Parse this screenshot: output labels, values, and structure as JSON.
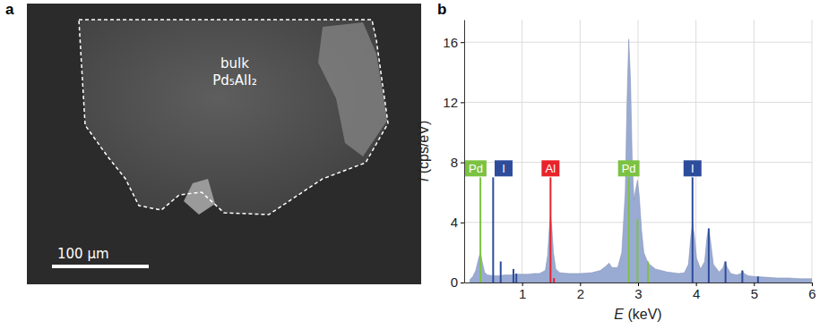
{
  "image_panel": {
    "panel": "a",
    "label_lines": [
      "bulk",
      "Pd₅AlI₂"
    ],
    "scale_bar": "100 μm"
  },
  "chart_data": {
    "panel": "b",
    "type": "area",
    "x_label": "E (keV)",
    "y_label": "I (cps/eV)",
    "xlim": [
      0,
      6
    ],
    "xticks": [
      1,
      2,
      3,
      4,
      5,
      6
    ],
    "ylim": [
      0,
      17.5
    ],
    "yticks": [
      0,
      4,
      8,
      12,
      16
    ],
    "grid": true,
    "series": [
      {
        "type": "area",
        "color": "#9aabd3",
        "x": [
          0.1,
          0.15,
          0.2,
          0.25,
          0.28,
          0.31,
          0.35,
          0.4,
          0.5,
          0.6,
          0.7,
          0.8,
          0.9,
          1.0,
          1.1,
          1.2,
          1.3,
          1.4,
          1.44,
          1.47,
          1.49,
          1.51,
          1.54,
          1.58,
          1.65,
          1.8,
          2.0,
          2.2,
          2.35,
          2.45,
          2.5,
          2.55,
          2.65,
          2.72,
          2.78,
          2.81,
          2.84,
          2.87,
          2.9,
          2.93,
          2.96,
          2.99,
          3.02,
          3.06,
          3.1,
          3.15,
          3.2,
          3.3,
          3.4,
          3.5,
          3.6,
          3.7,
          3.8,
          3.87,
          3.91,
          3.94,
          3.97,
          4.01,
          4.08,
          4.15,
          4.19,
          4.22,
          4.25,
          4.3,
          4.4,
          4.47,
          4.5,
          4.54,
          4.6,
          4.7,
          4.78,
          4.8,
          4.83,
          4.9,
          5.0,
          5.2,
          5.4,
          5.6,
          5.8,
          6.0
        ],
        "values": [
          0.2,
          0.4,
          0.8,
          1.6,
          2.0,
          1.4,
          0.7,
          0.5,
          0.45,
          0.45,
          0.5,
          0.5,
          0.55,
          0.55,
          0.55,
          0.6,
          0.6,
          0.8,
          1.8,
          3.6,
          4.4,
          3.8,
          2.0,
          0.9,
          0.65,
          0.6,
          0.6,
          0.65,
          0.8,
          1.1,
          1.3,
          1.0,
          1.0,
          2.0,
          6.0,
          12.0,
          16.2,
          13.5,
          8.0,
          5.5,
          6.2,
          6.8,
          5.8,
          3.5,
          2.0,
          1.5,
          1.2,
          0.9,
          0.8,
          0.7,
          0.65,
          0.6,
          0.65,
          1.2,
          3.0,
          3.9,
          3.2,
          1.6,
          0.9,
          1.4,
          3.0,
          3.6,
          2.8,
          1.2,
          0.7,
          1.0,
          1.4,
          1.0,
          0.6,
          0.5,
          0.6,
          0.8,
          0.6,
          0.45,
          0.4,
          0.35,
          0.3,
          0.3,
          0.25,
          0.25
        ]
      },
      {
        "type": "stem",
        "color": "#7cc242",
        "x": [
          0.28,
          2.84,
          2.99,
          3.17
        ],
        "values": [
          7.0,
          7.0,
          4.2,
          1.4
        ]
      },
      {
        "type": "stem",
        "color": "#2e4c9c",
        "x": [
          0.5,
          0.63,
          0.85,
          0.9,
          3.94,
          4.22,
          4.51,
          4.8,
          5.07
        ],
        "values": [
          7.0,
          1.4,
          0.9,
          0.6,
          7.0,
          3.6,
          1.4,
          0.8,
          0.4
        ]
      },
      {
        "type": "stem",
        "color": "#e8232a",
        "x": [
          1.49,
          1.55
        ],
        "values": [
          7.0,
          0.3
        ]
      }
    ],
    "annotations": [
      {
        "text": "Pd",
        "x": 0.2,
        "y": 7.6,
        "color": "#7cc242"
      },
      {
        "text": "I",
        "x": 0.68,
        "y": 7.6,
        "color": "#2e4c9c"
      },
      {
        "text": "Al",
        "x": 1.49,
        "y": 7.6,
        "color": "#e8232a"
      },
      {
        "text": "Pd",
        "x": 2.84,
        "y": 7.6,
        "color": "#7cc242"
      },
      {
        "text": "I",
        "x": 3.94,
        "y": 7.6,
        "color": "#2e4c9c"
      }
    ]
  }
}
